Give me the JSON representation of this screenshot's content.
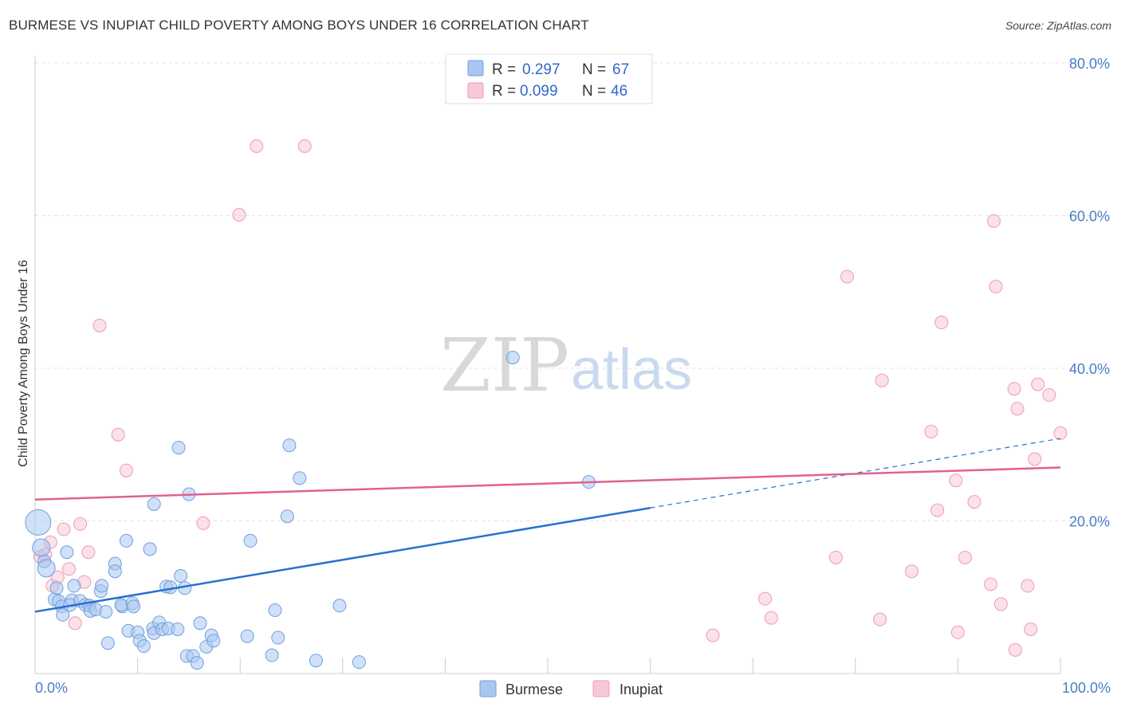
{
  "title": "BURMESE VS INUPIAT CHILD POVERTY AMONG BOYS UNDER 16 CORRELATION CHART",
  "source": "Source: ZipAtlas.com",
  "watermark": {
    "left": "ZIP",
    "right": "atlas"
  },
  "legend_top": {
    "burmese": {
      "r_label": "R =",
      "r_value": "0.297",
      "n_label": "N =",
      "n_value": "67"
    },
    "inupiat": {
      "r_label": "R =",
      "r_value": "0.099",
      "n_label": "N =",
      "n_value": "46"
    }
  },
  "legend_bottom": {
    "burmese": "Burmese",
    "inupiat": "Inupiat"
  },
  "colors": {
    "burmese": "#6f9fe0",
    "burmese_fill": "#a9c6f0",
    "burmese_line": "#2a6fd0",
    "inupiat": "#f09ab4",
    "inupiat_fill": "#f8c8d6",
    "inupiat_line": "#e0628c"
  },
  "chart_data": {
    "type": "scatter",
    "title": "BURMESE VS INUPIAT CHILD POVERTY AMONG BOYS UNDER 16 CORRELATION CHART",
    "xlabel": "",
    "ylabel": "Child Poverty Among Boys Under 16",
    "xlim": [
      0,
      100
    ],
    "ylim": [
      0,
      80
    ],
    "x_tick_labels": [
      "0.0%",
      "100.0%"
    ],
    "y_tick_labels": [
      "20.0%",
      "40.0%",
      "60.0%",
      "80.0%"
    ],
    "y_ticks": [
      20,
      40,
      60,
      80
    ],
    "grid": true,
    "series": [
      {
        "name": "Burmese",
        "r": 0.297,
        "n": 67,
        "trend": {
          "x0": 0,
          "y0": 8.1,
          "x1": 60,
          "y1": 21.7,
          "dashed_to_x": 100,
          "dashed_to_y": 30.8
        },
        "points": [
          [
            0.3,
            19.8
          ],
          [
            0.6,
            16.5
          ],
          [
            0.9,
            14.7
          ],
          [
            1.1,
            13.8
          ],
          [
            3.1,
            15.9
          ],
          [
            2.1,
            11.2
          ],
          [
            3.8,
            11.5
          ],
          [
            1.9,
            9.7
          ],
          [
            2.3,
            9.5
          ],
          [
            3.6,
            9.6
          ],
          [
            2.6,
            8.8
          ],
          [
            3.4,
            9.0
          ],
          [
            4.4,
            9.5
          ],
          [
            4.9,
            9.0
          ],
          [
            5.3,
            8.9
          ],
          [
            5.4,
            8.2
          ],
          [
            5.9,
            8.4
          ],
          [
            6.9,
            8.1
          ],
          [
            2.7,
            7.7
          ],
          [
            6.4,
            10.8
          ],
          [
            6.5,
            11.5
          ],
          [
            7.8,
            14.4
          ],
          [
            7.8,
            13.4
          ],
          [
            8.5,
            8.8
          ],
          [
            8.9,
            17.4
          ],
          [
            8.4,
            9.0
          ],
          [
            9.5,
            9.2
          ],
          [
            9.6,
            8.8
          ],
          [
            11.2,
            16.3
          ],
          [
            11.6,
            22.2
          ],
          [
            12.8,
            11.4
          ],
          [
            13.2,
            11.3
          ],
          [
            14.2,
            12.8
          ],
          [
            14.6,
            11.2
          ],
          [
            14.0,
            29.6
          ],
          [
            15.0,
            23.5
          ],
          [
            9.1,
            5.6
          ],
          [
            10.0,
            5.4
          ],
          [
            10.2,
            4.3
          ],
          [
            10.6,
            3.6
          ],
          [
            11.5,
            5.9
          ],
          [
            11.6,
            5.3
          ],
          [
            12.1,
            6.7
          ],
          [
            12.4,
            5.8
          ],
          [
            13.0,
            5.9
          ],
          [
            13.9,
            5.8
          ],
          [
            14.8,
            2.3
          ],
          [
            15.4,
            2.3
          ],
          [
            15.8,
            1.4
          ],
          [
            16.1,
            6.6
          ],
          [
            16.7,
            3.5
          ],
          [
            17.2,
            5.0
          ],
          [
            17.4,
            4.3
          ],
          [
            21.0,
            17.4
          ],
          [
            20.7,
            4.9
          ],
          [
            23.4,
            8.3
          ],
          [
            23.7,
            4.7
          ],
          [
            23.1,
            2.4
          ],
          [
            24.6,
            20.6
          ],
          [
            24.8,
            29.9
          ],
          [
            25.8,
            25.6
          ],
          [
            27.4,
            1.7
          ],
          [
            29.7,
            8.9
          ],
          [
            31.6,
            1.5
          ],
          [
            46.6,
            41.4
          ],
          [
            54.0,
            25.1
          ],
          [
            7.1,
            4.0
          ]
        ]
      },
      {
        "name": "Inupiat",
        "r": 0.099,
        "n": 46,
        "trend": {
          "x0": 0,
          "y0": 22.8,
          "x1": 100,
          "y1": 27.0
        },
        "points": [
          [
            0.5,
            15.3
          ],
          [
            1.0,
            15.6
          ],
          [
            1.5,
            17.2
          ],
          [
            1.7,
            11.5
          ],
          [
            2.2,
            12.6
          ],
          [
            2.8,
            18.9
          ],
          [
            3.3,
            13.7
          ],
          [
            3.9,
            6.6
          ],
          [
            4.4,
            19.6
          ],
          [
            4.8,
            12.0
          ],
          [
            5.2,
            15.9
          ],
          [
            6.3,
            45.6
          ],
          [
            8.1,
            31.3
          ],
          [
            8.9,
            26.6
          ],
          [
            16.4,
            19.7
          ],
          [
            19.9,
            60.1
          ],
          [
            21.6,
            69.1
          ],
          [
            26.3,
            69.1
          ],
          [
            66.1,
            5.0
          ],
          [
            71.2,
            9.8
          ],
          [
            71.8,
            7.3
          ],
          [
            78.1,
            15.2
          ],
          [
            88.0,
            21.4
          ],
          [
            90.7,
            15.2
          ],
          [
            93.2,
            11.7
          ],
          [
            95.6,
            3.1
          ],
          [
            79.2,
            52.0
          ],
          [
            82.4,
            7.1
          ],
          [
            82.6,
            38.4
          ],
          [
            85.5,
            13.4
          ],
          [
            87.4,
            31.7
          ],
          [
            88.4,
            46.0
          ],
          [
            89.8,
            25.3
          ],
          [
            90.0,
            5.4
          ],
          [
            91.6,
            22.5
          ],
          [
            93.5,
            59.3
          ],
          [
            93.7,
            50.7
          ],
          [
            94.2,
            9.1
          ],
          [
            95.5,
            37.3
          ],
          [
            95.8,
            34.7
          ],
          [
            96.8,
            11.5
          ],
          [
            97.1,
            5.8
          ],
          [
            97.5,
            28.1
          ],
          [
            97.8,
            37.9
          ],
          [
            98.9,
            36.5
          ],
          [
            100.0,
            31.5
          ]
        ]
      }
    ]
  }
}
